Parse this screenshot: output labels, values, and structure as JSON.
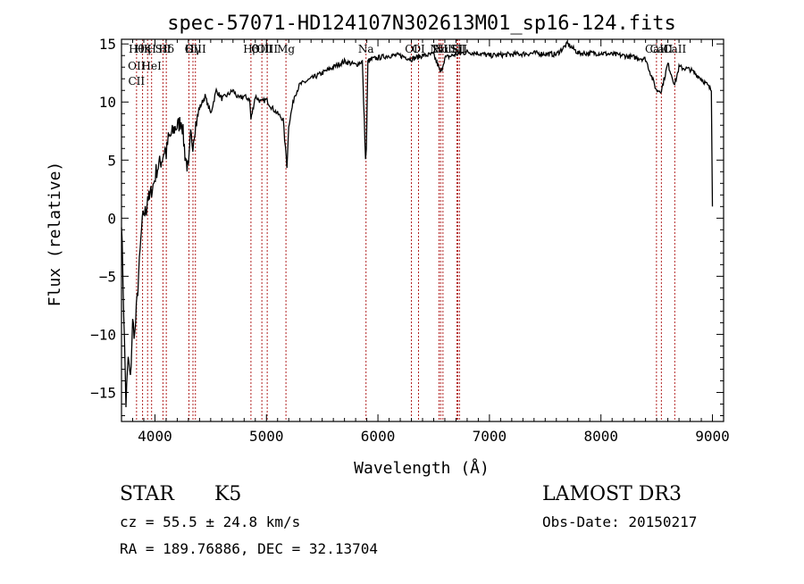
{
  "chart_data": {
    "type": "line",
    "title": "spec-57071-HD124107N302613M01_sp16-124.fits",
    "xlabel": "Wavelength (Å)",
    "ylabel": "Flux (relative)",
    "xlim": [
      3700,
      9100
    ],
    "ylim": [
      -17.5,
      15.4
    ],
    "xticks": [
      4000,
      5000,
      6000,
      7000,
      8000,
      9000
    ],
    "yticks": [
      -15,
      -10,
      -5,
      0,
      5,
      10,
      15
    ],
    "grid": false,
    "series": [
      {
        "x": [
          3700,
          3720,
          3740,
          3760,
          3780,
          3800,
          3820,
          3840,
          3860,
          3880,
          3900,
          3920,
          3935,
          3950,
          3970,
          3990,
          4010,
          4030,
          4060,
          4090,
          4101,
          4120,
          4150,
          4180,
          4210,
          4240,
          4270,
          4300,
          4320,
          4340,
          4360,
          4380,
          4400,
          4450,
          4500,
          4550,
          4600,
          4650,
          4700,
          4750,
          4800,
          4850,
          4861,
          4900,
          4950,
          5000,
          5050,
          5100,
          5150,
          5170,
          5184,
          5200,
          5250,
          5300,
          5400,
          5500,
          5600,
          5700,
          5800,
          5860,
          5889,
          5896,
          5910,
          5950,
          6000,
          6100,
          6200,
          6300,
          6400,
          6500,
          6563,
          6600,
          6700,
          6800,
          6900,
          7000,
          7200,
          7400,
          7600,
          7700,
          7800,
          8000,
          8200,
          8400,
          8498,
          8542,
          8600,
          8662,
          8700,
          8800,
          8900,
          8950,
          8990,
          9000
        ],
        "y": [
          0,
          -8,
          -16,
          -12,
          -14,
          -9,
          -10,
          -7,
          -4,
          -1,
          0.5,
          0.5,
          2,
          1.5,
          2.5,
          3,
          4,
          4.5,
          5,
          6,
          5.5,
          6.8,
          7.2,
          7.8,
          8,
          8.5,
          5.5,
          4,
          7,
          6.5,
          8,
          8.5,
          9.5,
          10.5,
          9,
          11,
          10.3,
          10.6,
          11,
          10.3,
          10.5,
          10.2,
          8.5,
          10.5,
          10,
          10.2,
          9.5,
          9,
          8.5,
          6,
          4.5,
          8,
          10.5,
          11.5,
          12,
          12.5,
          13,
          13.5,
          13.2,
          13.5,
          5,
          6,
          13.5,
          13.7,
          13.8,
          14,
          14,
          13.7,
          14,
          14.1,
          12.5,
          13.8,
          14.1,
          14.3,
          14.2,
          14,
          14.1,
          14.2,
          14.1,
          15,
          14.2,
          14.2,
          14,
          13.7,
          11,
          11,
          13.3,
          11.5,
          13,
          12.8,
          12,
          11.5,
          11,
          1
        ]
      }
    ],
    "lines": [
      {
        "wave": 3835,
        "labels": [
          "Hθ",
          "OII",
          "CII"
        ]
      },
      {
        "wave": 3889,
        "labels": [
          "Hη"
        ]
      },
      {
        "wave": 3934,
        "labels": [
          "K"
        ]
      },
      {
        "wave": 3970,
        "labels": [
          "H",
          "HeI"
        ]
      },
      {
        "wave": 4072,
        "labels": [
          "SII"
        ]
      },
      {
        "wave": 4102,
        "labels": [
          "Hδ"
        ]
      },
      {
        "wave": 4305,
        "labels": [
          "G"
        ]
      },
      {
        "wave": 4341,
        "labels": [
          "Hγ"
        ]
      },
      {
        "wave": 4363,
        "labels": [
          "OIII"
        ]
      },
      {
        "wave": 4861,
        "labels": [
          "Hβ"
        ]
      },
      {
        "wave": 4959,
        "labels": [
          "OIII"
        ]
      },
      {
        "wave": 5007,
        "labels": [
          "OIII"
        ]
      },
      {
        "wave": 5175,
        "labels": [
          "Mg"
        ]
      },
      {
        "wave": 5893,
        "labels": [
          "Na"
        ]
      },
      {
        "wave": 6300,
        "labels": [
          "OI"
        ]
      },
      {
        "wave": 6364,
        "labels": [
          "OI"
        ]
      },
      {
        "wave": 6548,
        "labels": [
          "NII"
        ]
      },
      {
        "wave": 6563,
        "labels": [
          "Hα"
        ]
      },
      {
        "wave": 6583,
        "labels": [
          "NII"
        ]
      },
      {
        "wave": 6708,
        "labels": [
          "Li"
        ]
      },
      {
        "wave": 6716,
        "labels": [
          "SII"
        ]
      },
      {
        "wave": 6731,
        "labels": [
          "SII"
        ]
      },
      {
        "wave": 8498,
        "labels": [
          "CaII"
        ]
      },
      {
        "wave": 8542,
        "labels": [
          "CaII"
        ]
      },
      {
        "wave": 8662,
        "labels": [
          "CaII"
        ]
      }
    ],
    "line_color": "#b22222"
  },
  "info": {
    "class_label": "STAR",
    "subclass": "K5",
    "survey": "LAMOST DR3",
    "cz": "cz = 55.5 ± 24.8 km/s",
    "obs_date": "Obs-Date: 20150217",
    "coords": "RA = 189.76886, DEC =  32.13704"
  }
}
